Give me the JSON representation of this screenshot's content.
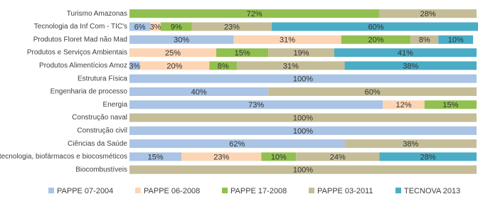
{
  "chart_data": {
    "type": "stacked-barh",
    "categories": [
      "Turismo Amazonas",
      "Tecnologia da Inf Com - TIC's",
      "Produtos Floret Mad não Mad",
      "Produtos e Serviços Ambientais",
      "Produtos Alimentícios Amoz",
      "Estrutura Física",
      "Engenharia de processo",
      "Energia",
      "Construção naval",
      "Construção civil",
      "Ciências da Saúde",
      "Biotecnologia, biofármacos e biocosméticos",
      "Biocombustíveis"
    ],
    "xlim": [
      0,
      100
    ],
    "series": [
      {
        "name": "PAPPE 07-2004",
        "color": "#a9c4e4",
        "values": [
          null,
          6,
          30,
          null,
          3,
          100,
          40,
          73,
          null,
          100,
          62,
          15,
          null
        ],
        "value_labels": [
          null,
          "6%",
          "30%",
          null,
          "3%",
          "100%",
          "40%",
          "73%",
          null,
          "100%",
          "62%",
          "15%",
          null
        ]
      },
      {
        "name": "PAPPE 06-2008",
        "color": "#fcd5b4",
        "values": [
          null,
          3,
          31,
          25,
          20,
          null,
          null,
          12,
          null,
          null,
          null,
          23,
          null
        ],
        "value_labels": [
          null,
          "3%",
          "31%",
          "25%",
          "20%",
          null,
          null,
          "12%",
          null,
          null,
          null,
          "23%",
          null
        ]
      },
      {
        "name": "PAPPE 17-2008",
        "color": "#92c050",
        "values": [
          72,
          9,
          20,
          15,
          8,
          null,
          null,
          15,
          null,
          null,
          null,
          10,
          null
        ],
        "value_labels": [
          "72%",
          "9%",
          "20%",
          "15%",
          "8%",
          null,
          null,
          "15%",
          null,
          null,
          null,
          "10%",
          null
        ]
      },
      {
        "name": "PAPPE 03-2011",
        "color": "#c4bd97",
        "values": [
          28,
          23,
          8,
          19,
          31,
          null,
          60,
          null,
          100,
          null,
          38,
          24,
          100
        ],
        "value_labels": [
          "28%",
          "23%",
          "8%",
          "19%",
          "31%",
          null,
          "60%",
          null,
          "100%",
          null,
          "38%",
          "24%",
          "100%"
        ]
      },
      {
        "name": "TECNOVA 2013",
        "color": "#4bacc6",
        "values": [
          null,
          60,
          10,
          41,
          38,
          null,
          null,
          null,
          null,
          null,
          null,
          28,
          null
        ],
        "value_labels": [
          null,
          "60%",
          "10%",
          "41%",
          "38%",
          null,
          null,
          null,
          null,
          null,
          null,
          "28%",
          null
        ]
      }
    ]
  }
}
